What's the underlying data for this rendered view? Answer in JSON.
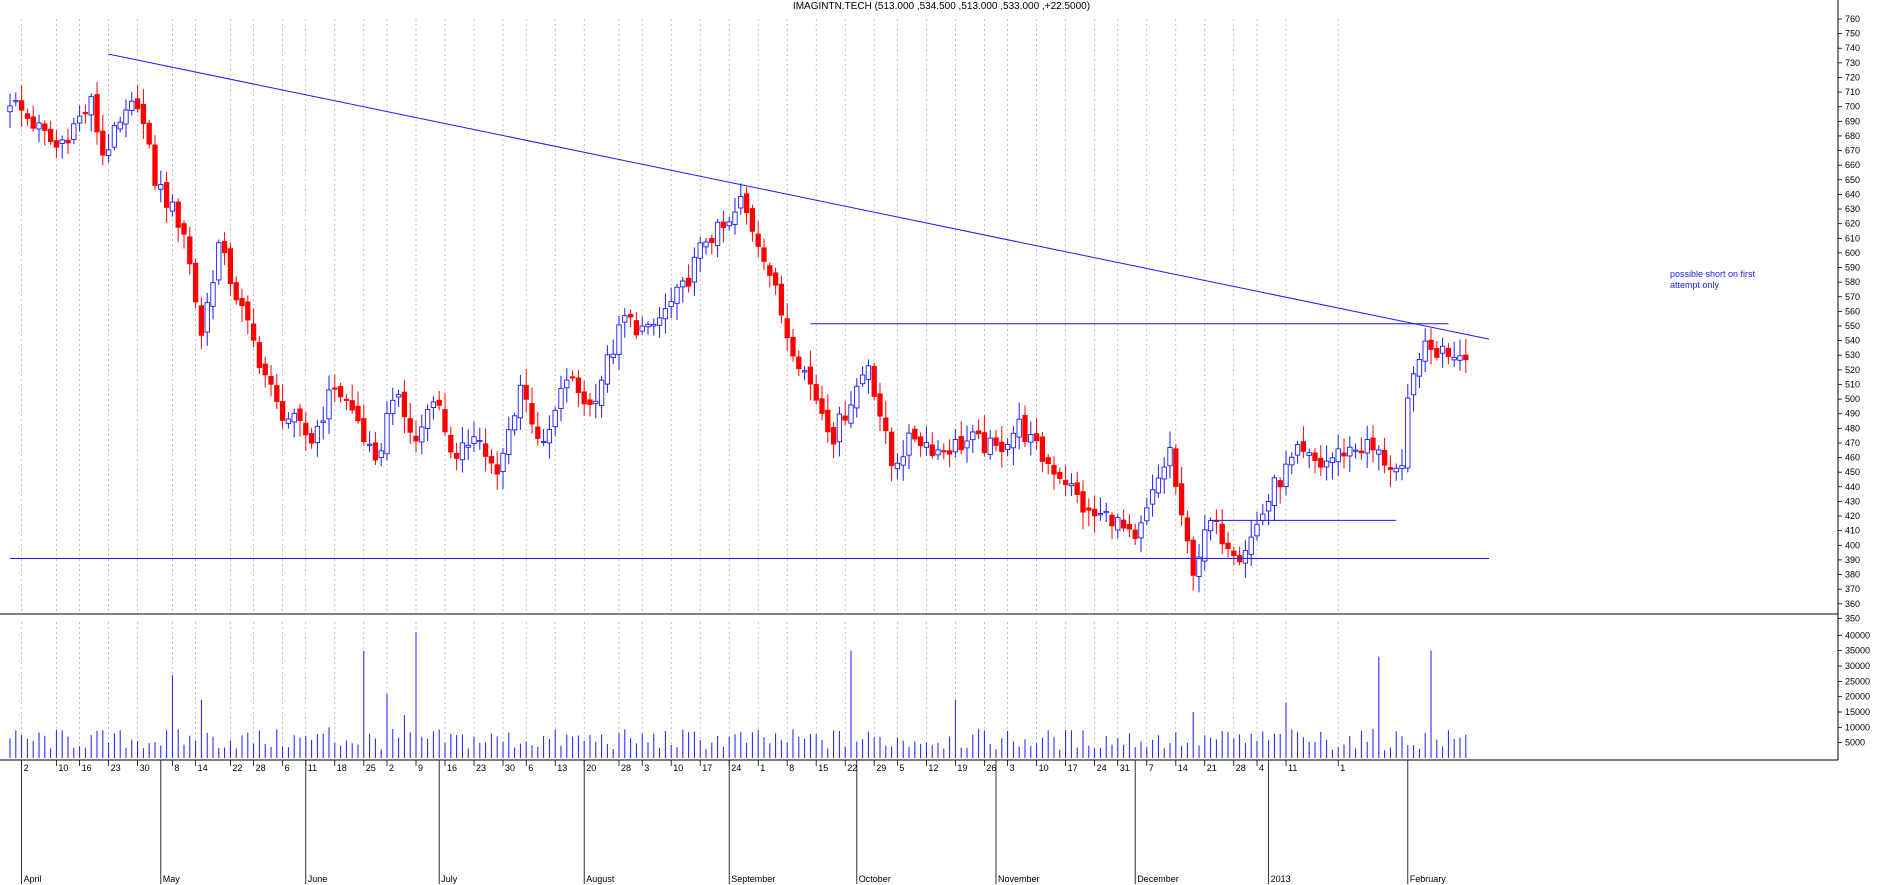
{
  "chart_data": {
    "type": "candlestick",
    "title": "IMAGINTN.TECH (513.000 ,534.500 ,513.000 ,533.000 ,+22.5000)",
    "price_axis": {
      "ylim": [
        340,
        760
      ],
      "ticks": [
        350,
        360,
        370,
        380,
        390,
        400,
        410,
        420,
        430,
        440,
        450,
        460,
        470,
        480,
        490,
        500,
        510,
        520,
        530,
        540,
        550,
        560,
        570,
        580,
        590,
        600,
        610,
        620,
        630,
        640,
        650,
        660,
        670,
        680,
        690,
        700,
        710,
        720,
        730,
        740,
        750,
        760
      ],
      "side": "right",
      "grid": "vertical dotted"
    },
    "volume_axis": {
      "ylim": [
        0,
        45000
      ],
      "ticks": [
        5000,
        10000,
        15000,
        20000,
        25000,
        30000,
        35000,
        40000
      ],
      "tick_labels": [
        "5000",
        "10000",
        "15000",
        "20000",
        "25000",
        "30000",
        "35000",
        "40000"
      ]
    },
    "x_axis": {
      "day_labels": [
        "2",
        "10",
        "16",
        "23",
        "30",
        "8",
        "14",
        "22",
        "28",
        "6",
        "11",
        "18",
        "25",
        "2",
        "9",
        "16",
        "23",
        "30",
        "6",
        "13",
        "20",
        "28",
        "3",
        "10",
        "17",
        "24",
        "1",
        "8",
        "15",
        "22",
        "29",
        "5",
        "12",
        "19",
        "26",
        "3",
        "10",
        "17",
        "24",
        "31",
        "7",
        "14",
        "21",
        "28",
        "4",
        "11",
        "1"
      ],
      "month_labels": [
        "April",
        "May",
        "June",
        "July",
        "August",
        "September",
        "October",
        "November",
        "December",
        "2013",
        "February"
      ]
    },
    "bar_count": 252,
    "anchors": [
      {
        "i": 0,
        "p": 705
      },
      {
        "i": 8,
        "p": 672
      },
      {
        "i": 14,
        "p": 702
      },
      {
        "i": 16,
        "p": 668
      },
      {
        "i": 22,
        "p": 705
      },
      {
        "i": 25,
        "p": 650
      },
      {
        "i": 30,
        "p": 615
      },
      {
        "i": 33,
        "p": 545
      },
      {
        "i": 36,
        "p": 605
      },
      {
        "i": 40,
        "p": 560
      },
      {
        "i": 46,
        "p": 495
      },
      {
        "i": 52,
        "p": 472
      },
      {
        "i": 56,
        "p": 510
      },
      {
        "i": 60,
        "p": 485
      },
      {
        "i": 63,
        "p": 452
      },
      {
        "i": 66,
        "p": 505
      },
      {
        "i": 70,
        "p": 470
      },
      {
        "i": 73,
        "p": 505
      },
      {
        "i": 77,
        "p": 455
      },
      {
        "i": 80,
        "p": 480
      },
      {
        "i": 84,
        "p": 445
      },
      {
        "i": 88,
        "p": 510
      },
      {
        "i": 92,
        "p": 465
      },
      {
        "i": 96,
        "p": 515
      },
      {
        "i": 100,
        "p": 495
      },
      {
        "i": 106,
        "p": 555
      },
      {
        "i": 110,
        "p": 545
      },
      {
        "i": 116,
        "p": 575
      },
      {
        "i": 120,
        "p": 610
      },
      {
        "i": 124,
        "p": 618
      },
      {
        "i": 126,
        "p": 635
      },
      {
        "i": 130,
        "p": 600
      },
      {
        "i": 134,
        "p": 545
      },
      {
        "i": 138,
        "p": 510
      },
      {
        "i": 142,
        "p": 475
      },
      {
        "i": 148,
        "p": 525
      },
      {
        "i": 152,
        "p": 455
      },
      {
        "i": 156,
        "p": 475
      },
      {
        "i": 160,
        "p": 465
      },
      {
        "i": 166,
        "p": 472
      },
      {
        "i": 170,
        "p": 465
      },
      {
        "i": 174,
        "p": 482
      },
      {
        "i": 178,
        "p": 460
      },
      {
        "i": 182,
        "p": 445
      },
      {
        "i": 186,
        "p": 420
      },
      {
        "i": 190,
        "p": 420
      },
      {
        "i": 194,
        "p": 400
      },
      {
        "i": 198,
        "p": 445
      },
      {
        "i": 200,
        "p": 465
      },
      {
        "i": 202,
        "p": 415
      },
      {
        "i": 204,
        "p": 385
      },
      {
        "i": 207,
        "p": 415
      },
      {
        "i": 212,
        "p": 395
      },
      {
        "i": 214,
        "p": 405
      },
      {
        "i": 218,
        "p": 440
      },
      {
        "i": 222,
        "p": 462
      },
      {
        "i": 226,
        "p": 455
      },
      {
        "i": 230,
        "p": 465
      },
      {
        "i": 234,
        "p": 468
      },
      {
        "i": 238,
        "p": 455
      },
      {
        "i": 240,
        "p": 448
      },
      {
        "i": 241,
        "p": 495
      },
      {
        "i": 243,
        "p": 533
      }
    ],
    "lines": [
      {
        "kind": "trendline",
        "from": {
          "i": 17,
          "p": 736
        },
        "to": {
          "i": 255,
          "p": 541
        }
      },
      {
        "kind": "horizontal",
        "p": 551.5,
        "from_i": 138,
        "to_i": 248
      },
      {
        "kind": "horizontal",
        "p": 417,
        "from_i": 207,
        "to_i": 239
      },
      {
        "kind": "horizontal",
        "p": 391,
        "from_i": 0,
        "to_i": 255
      }
    ],
    "annotation": {
      "text_lines": [
        "possible short on first",
        "attempt only"
      ]
    }
  },
  "colors": {
    "up": "#1a1aff",
    "down": "#ff0000",
    "lines": "#1a1aff",
    "grid": "#9a9a9a"
  }
}
